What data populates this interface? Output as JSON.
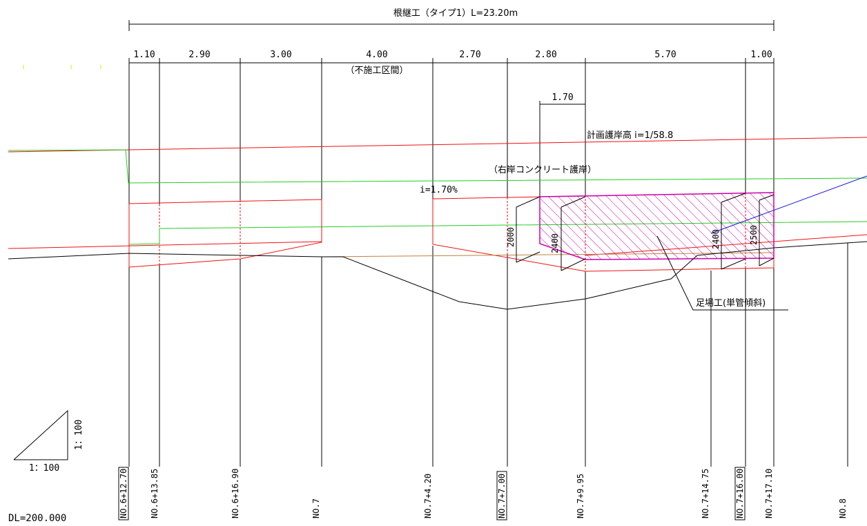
{
  "title": "根継工（タイプ1）L=23.20m",
  "segment_dims": [
    "1.10",
    "2.90",
    "3.00",
    "4.00",
    "2.70",
    "2.80",
    "5.70",
    "1.00"
  ],
  "unconstructed_note": "（不施工区間）",
  "sub_dim": "1.70",
  "plan_revetment": "計画護岸高 i=1/58.8",
  "right_bank": "（右岸コンクリート護岸）",
  "slope": "i=1.70%",
  "heights": [
    "2000",
    "2400",
    "2400",
    "2500"
  ],
  "scaffold": "足場工(単管傾斜)",
  "scale_h": "1：100",
  "scale_v": "1：100",
  "datum": "DL=200.000",
  "stations": [
    {
      "label": "NO.6+12.70",
      "boxed": true
    },
    {
      "label": "NO.6+13.85",
      "boxed": false
    },
    {
      "label": "NO.6+16.90",
      "boxed": false
    },
    {
      "label": "NO.7",
      "boxed": false
    },
    {
      "label": "NO.7+4.20",
      "boxed": false
    },
    {
      "label": "NO.7+7.00",
      "boxed": true
    },
    {
      "label": "NO.7+9.95",
      "boxed": false
    },
    {
      "label": "NO.7+14.75",
      "boxed": false
    },
    {
      "label": "NO.7+16.00",
      "boxed": true
    },
    {
      "label": "NO.7+17.10",
      "boxed": false
    },
    {
      "label": "NO.8",
      "boxed": false
    }
  ],
  "colors": {
    "plan_line": "#ee1111",
    "green_line": "#22cc22",
    "ground_line": "#000000",
    "hatch": "#cc00aa",
    "blue_line": "#1111dd",
    "brown_line": "#c08040"
  }
}
